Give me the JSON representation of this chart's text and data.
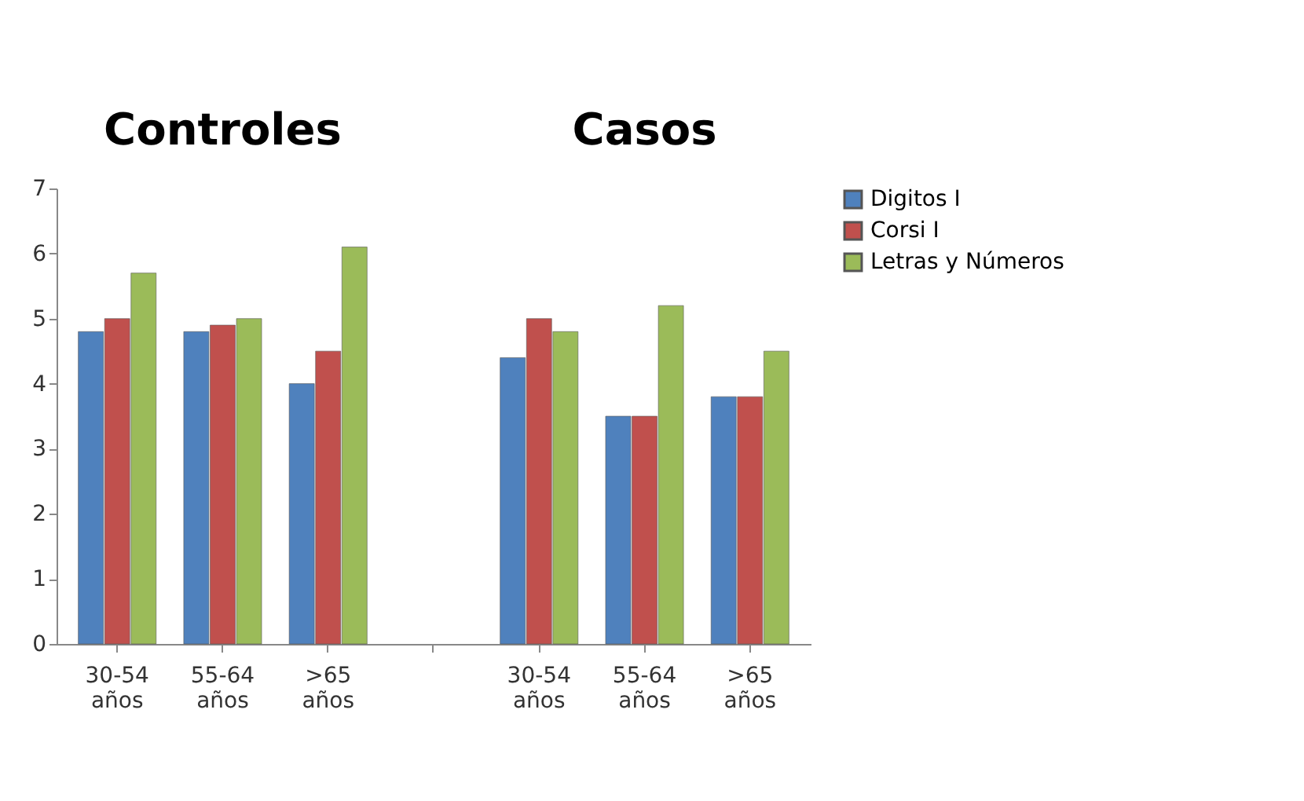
{
  "chart_data": {
    "type": "bar",
    "categories": [
      "30-54 años",
      "55-64 años",
      ">65 años",
      null,
      "30-54 años",
      "55-64 años",
      ">65 años"
    ],
    "series": [
      {
        "name": "Digitos I",
        "color": "#4f81bd",
        "values": [
          4.8,
          4.8,
          4.0,
          null,
          4.4,
          3.5,
          3.8
        ]
      },
      {
        "name": "Corsi I",
        "color": "#c0504d",
        "values": [
          5.0,
          4.9,
          4.5,
          null,
          5.0,
          3.5,
          3.8
        ]
      },
      {
        "name": "Letras y Números",
        "color": "#9bbb59",
        "values": [
          5.7,
          5.0,
          6.1,
          null,
          4.8,
          5.2,
          4.5
        ]
      }
    ],
    "annotations": [
      "Controles",
      "Casos"
    ],
    "ylim": [
      0,
      7
    ],
    "yticks": [
      0,
      1,
      2,
      3,
      4,
      5,
      6,
      7
    ],
    "grid": false,
    "legend": "right"
  }
}
